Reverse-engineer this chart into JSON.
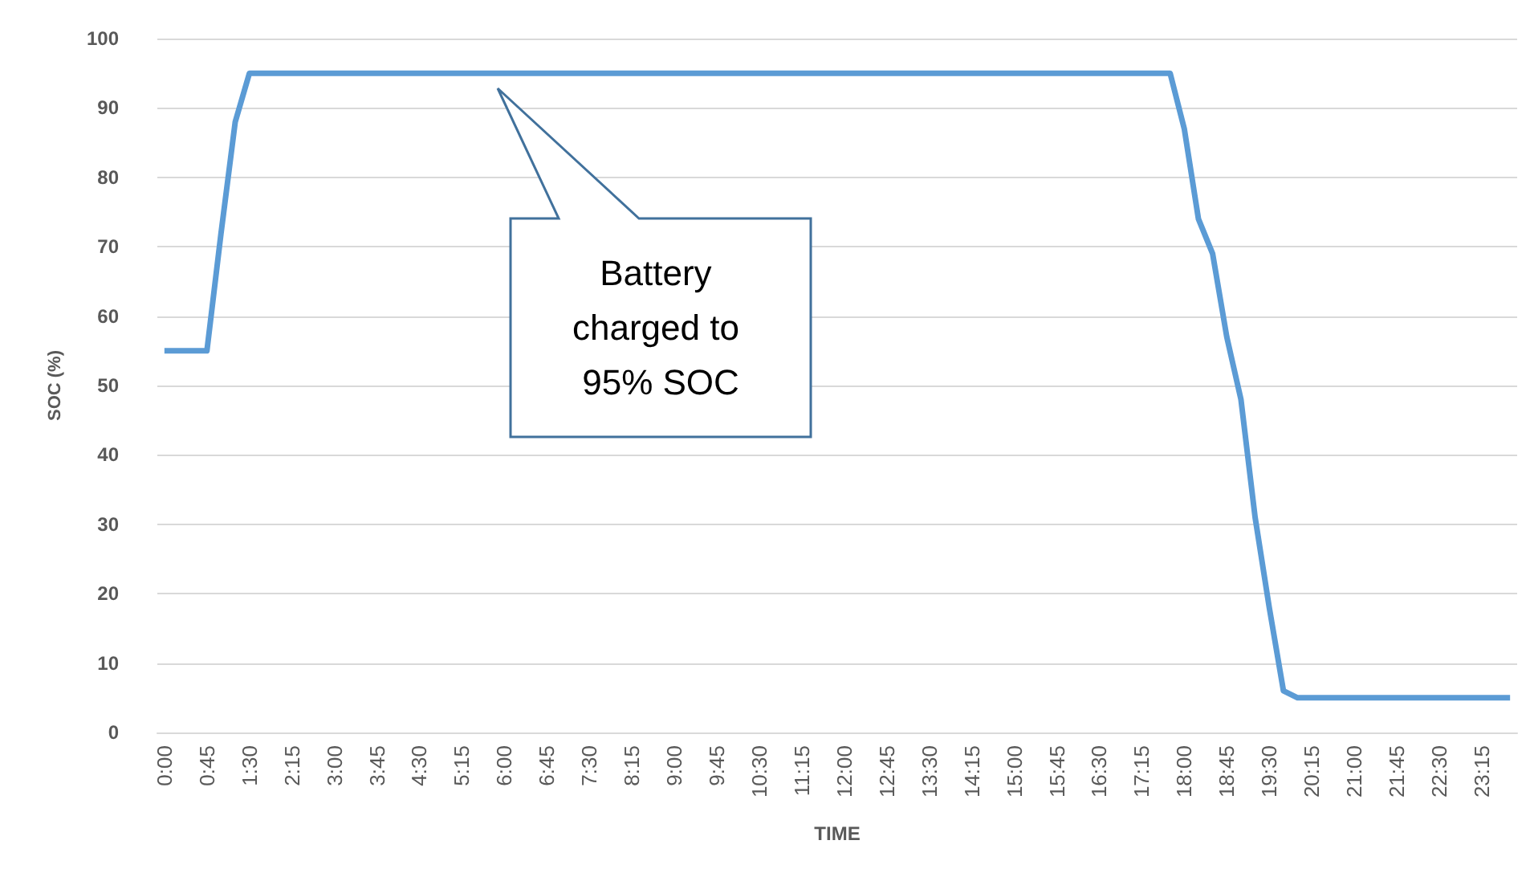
{
  "chart_data": {
    "type": "line",
    "xlabel": "TIME",
    "ylabel": "SOC (%)",
    "categories": [
      "0:00",
      null,
      null,
      "0:45",
      null,
      null,
      "1:30",
      null,
      null,
      "2:15",
      null,
      null,
      "3:00",
      null,
      null,
      "3:45",
      null,
      null,
      "4:30",
      null,
      null,
      "5:15",
      null,
      null,
      "6:00",
      null,
      null,
      "6:45",
      null,
      null,
      "7:30",
      null,
      null,
      "8:15",
      null,
      null,
      "9:00",
      null,
      null,
      "9:45",
      null,
      null,
      "10:30",
      null,
      null,
      "11:15",
      null,
      null,
      "12:00",
      null,
      null,
      "12:45",
      null,
      null,
      "13:30",
      null,
      null,
      "14:15",
      null,
      null,
      "15:00",
      null,
      null,
      "15:45",
      null,
      null,
      "16:30",
      null,
      null,
      "17:15",
      null,
      null,
      "18:00",
      null,
      null,
      "18:45",
      null,
      null,
      "19:30",
      null,
      null,
      "20:15",
      null,
      null,
      "21:00",
      null,
      null,
      "21:45",
      null,
      null,
      "22:30",
      null,
      null,
      "23:15",
      null,
      null
    ],
    "series": [
      {
        "color": "#5b9bd5",
        "values": [
          55,
          55,
          55,
          55,
          72,
          88,
          95,
          95,
          95,
          95,
          95,
          95,
          95,
          95,
          95,
          95,
          95,
          95,
          95,
          95,
          95,
          95,
          95,
          95,
          95,
          95,
          95,
          95,
          95,
          95,
          95,
          95,
          95,
          95,
          95,
          95,
          95,
          95,
          95,
          95,
          95,
          95,
          95,
          95,
          95,
          95,
          95,
          95,
          95,
          95,
          95,
          95,
          95,
          95,
          95,
          95,
          95,
          95,
          95,
          95,
          95,
          95,
          95,
          95,
          95,
          95,
          95,
          95,
          95,
          95,
          95,
          95,
          87,
          74,
          69,
          57,
          48,
          31,
          18,
          6,
          5,
          5,
          5,
          5,
          5,
          5,
          5,
          5,
          5,
          5,
          5,
          5,
          5,
          5,
          5,
          5
        ]
      }
    ],
    "ylim": [
      0,
      100
    ],
    "yticks": [
      0,
      10,
      20,
      30,
      40,
      50,
      60,
      70,
      80,
      90,
      100
    ],
    "grid": "y",
    "marker": "none",
    "line_style": "solid",
    "annotations": [
      "Battery charged to 95% SOC"
    ]
  }
}
